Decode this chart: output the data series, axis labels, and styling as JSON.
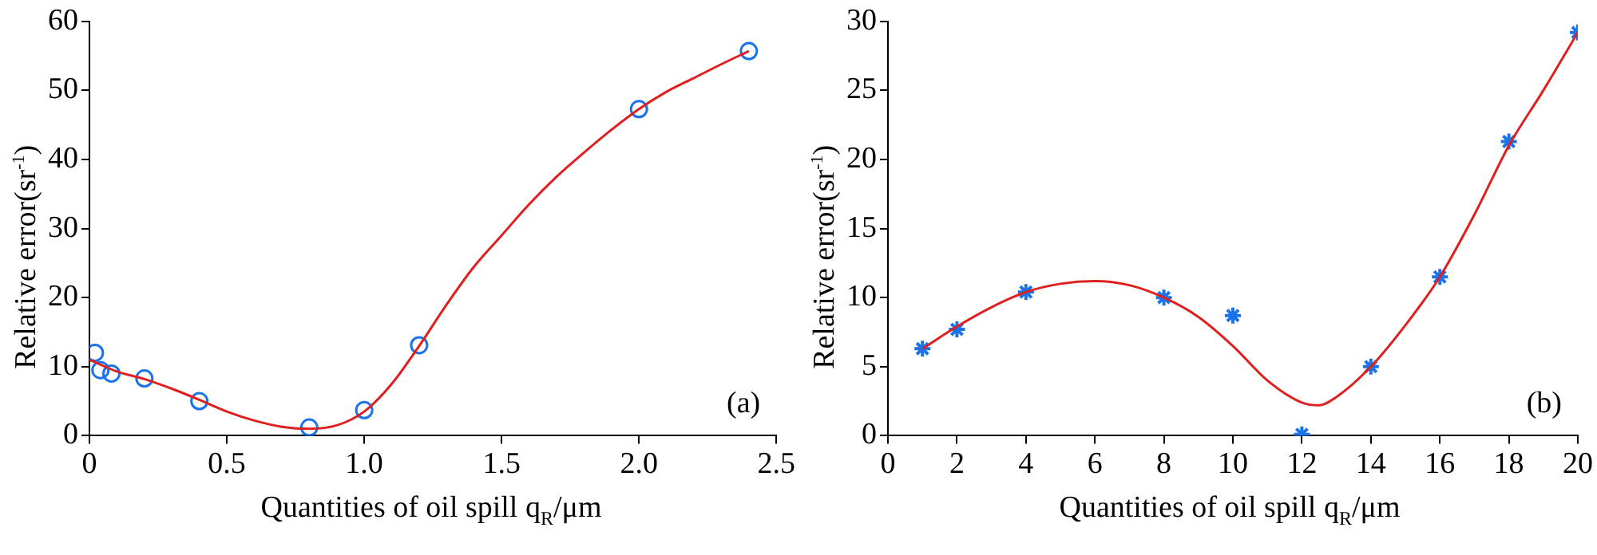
{
  "chart_data": [
    {
      "type": "scatter",
      "xlabel": "Quantities of oil spill q$_{R}$/μm",
      "ylabel": "Relative error(sr$^{-1}$)",
      "annotations": [
        "(a)"
      ],
      "xlim": [
        0,
        2.5
      ],
      "xticks": [
        0,
        0.5,
        {
          "value": 1,
          "label": "1.0"
        },
        1.5,
        {
          "value": 2,
          "label": "2.0"
        },
        2.5
      ],
      "ylim": [
        0,
        60
      ],
      "yticks": [
        0,
        10,
        20,
        30,
        40,
        50,
        60
      ],
      "grid": false,
      "legend": false,
      "series": [
        {
          "type": "scatter",
          "marker": "circle",
          "color": "#1a73e8",
          "x": [
            0.02,
            0.04,
            0.08,
            0.2,
            0.4,
            0.8,
            1.0,
            1.2,
            2.0,
            2.4
          ],
          "values": [
            12.0,
            9.5,
            9.0,
            8.3,
            5.0,
            1.2,
            3.7,
            13.1,
            47.3,
            55.7
          ]
        },
        {
          "type": "line",
          "marker": "none",
          "line_style": "solid",
          "color": "#e02020",
          "x": [
            0,
            0.1,
            0.2,
            0.3,
            0.4,
            0.5,
            0.6,
            0.7,
            0.8,
            0.9,
            1.0,
            1.1,
            1.2,
            1.3,
            1.4,
            1.5,
            1.6,
            1.7,
            1.8,
            1.9,
            2.0,
            2.1,
            2.2,
            2.3,
            2.4
          ],
          "values": [
            11,
            9.3,
            8.2,
            6.8,
            5.2,
            3.5,
            2.2,
            1.3,
            1.0,
            1.5,
            3.5,
            7.5,
            13,
            19,
            24.5,
            29,
            33.5,
            37.5,
            41,
            44.3,
            47.3,
            49.8,
            51.8,
            53.8,
            55.7
          ]
        }
      ]
    },
    {
      "type": "scatter",
      "xlabel": "Quantities of oil spill q$_{R}$/μm",
      "ylabel": "Relative error(sr$^{-1}$)",
      "annotations": [
        "(b)"
      ],
      "xlim": [
        0,
        20
      ],
      "xticks": [
        0,
        2,
        4,
        6,
        8,
        10,
        12,
        14,
        16,
        18,
        20
      ],
      "ylim": [
        0,
        30
      ],
      "yticks": [
        0,
        5,
        10,
        15,
        20,
        25,
        30
      ],
      "grid": false,
      "legend": false,
      "series": [
        {
          "type": "scatter",
          "marker": "cross",
          "color": "#1a73e8",
          "x": [
            1,
            2,
            4,
            8,
            10,
            12,
            14,
            16,
            18,
            20
          ],
          "values": [
            6.3,
            7.7,
            10.4,
            10.0,
            8.7,
            0.1,
            5.0,
            11.5,
            21.3,
            29.2
          ]
        },
        {
          "type": "line",
          "marker": "none",
          "line_style": "solid",
          "color": "#e02020",
          "x": [
            1,
            2,
            3,
            4,
            5,
            6,
            7,
            8,
            9,
            10,
            11,
            12,
            12.5,
            13,
            14,
            15,
            16,
            17,
            18,
            19,
            20
          ],
          "values": [
            6.3,
            7.9,
            9.3,
            10.4,
            11.0,
            11.2,
            10.9,
            10.0,
            8.6,
            6.5,
            4.0,
            2.4,
            2.2,
            2.8,
            5.0,
            8.0,
            11.5,
            16,
            21.0,
            25,
            29.2
          ]
        }
      ]
    }
  ]
}
